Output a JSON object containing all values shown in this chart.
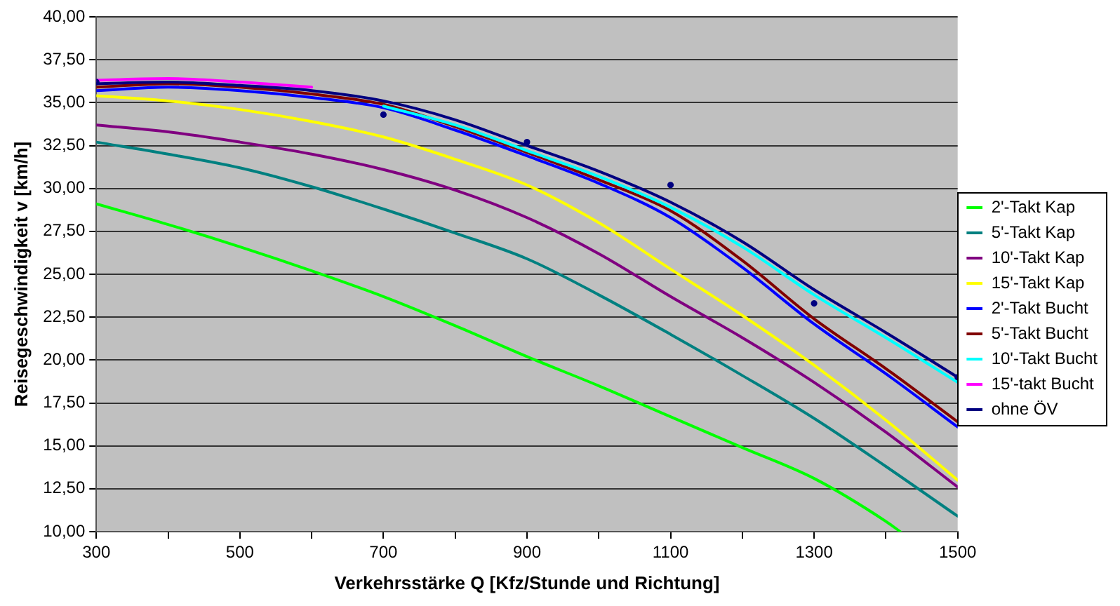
{
  "chart_data": {
    "type": "line",
    "xlabel": "Verkehrsstärke Q [Kfz/Stunde und Richtung]",
    "ylabel": "Reisegeschwindigkeit v [km/h]",
    "xlim": [
      300,
      1500
    ],
    "xticks": [
      300,
      {
        "value": 400,
        "label": null
      },
      500,
      {
        "value": 600,
        "label": null
      },
      700,
      {
        "value": 800,
        "label": null
      },
      900,
      {
        "value": 1000,
        "label": null
      },
      1100,
      {
        "value": 1200,
        "label": null
      },
      1300,
      {
        "value": 1400,
        "label": null
      },
      1500
    ],
    "ylim": [
      10,
      40
    ],
    "yticks": [
      {
        "value": 10,
        "label": "10,00"
      },
      {
        "value": 12.5,
        "label": "12,50"
      },
      {
        "value": 15,
        "label": "15,00"
      },
      {
        "value": 17.5,
        "label": "17,50"
      },
      {
        "value": 20,
        "label": "20,00"
      },
      {
        "value": 22.5,
        "label": "22,50"
      },
      {
        "value": 25,
        "label": "25,00"
      },
      {
        "value": 27.5,
        "label": "27,50"
      },
      {
        "value": 30,
        "label": "30,00"
      },
      {
        "value": 32.5,
        "label": "32,50"
      },
      {
        "value": 35,
        "label": "35,00"
      },
      {
        "value": 37.5,
        "label": "37,50"
      },
      {
        "value": 40,
        "label": "40,00"
      }
    ],
    "grid": "y",
    "legend": "right",
    "marker": "none",
    "line_style": "solid",
    "series": [
      {
        "name": "2'-Takt Kap",
        "color": "#00ff00",
        "x": [
          300,
          400,
          500,
          600,
          700,
          800,
          900,
          1000,
          1100,
          1200,
          1300,
          1400,
          1420
        ],
        "values": [
          29.1,
          27.9,
          26.6,
          25.2,
          23.7,
          22.0,
          20.2,
          18.5,
          16.7,
          14.9,
          13.1,
          10.6,
          10.0
        ]
      },
      {
        "name": "5'-Takt Kap",
        "color": "#008080",
        "x": [
          300,
          400,
          500,
          600,
          700,
          800,
          900,
          1000,
          1100,
          1200,
          1300,
          1400,
          1500
        ],
        "values": [
          32.7,
          32.0,
          31.2,
          30.1,
          28.8,
          27.4,
          25.9,
          23.8,
          21.5,
          19.1,
          16.6,
          13.8,
          10.9
        ]
      },
      {
        "name": "10'-Takt Kap",
        "color": "#800080",
        "x": [
          300,
          400,
          500,
          600,
          700,
          800,
          900,
          1000,
          1100,
          1200,
          1300,
          1400,
          1500
        ],
        "values": [
          33.7,
          33.3,
          32.7,
          32.0,
          31.1,
          29.9,
          28.3,
          26.2,
          23.7,
          21.3,
          18.7,
          15.8,
          12.6
        ]
      },
      {
        "name": "15'-Takt Kap",
        "color": "#ffff00",
        "x": [
          300,
          400,
          500,
          600,
          700,
          800,
          900,
          1000,
          1100,
          1200,
          1300,
          1400,
          1500
        ],
        "values": [
          35.4,
          35.1,
          34.6,
          33.9,
          33.0,
          31.7,
          30.2,
          28.0,
          25.3,
          22.6,
          19.7,
          16.5,
          13.0
        ]
      },
      {
        "name": "2'-Takt Bucht",
        "color": "#0000ff",
        "x": [
          300,
          400,
          500,
          600,
          700,
          800,
          900,
          1000,
          1100,
          1200,
          1300,
          1400,
          1500
        ],
        "values": [
          35.7,
          35.9,
          35.7,
          35.3,
          34.7,
          33.4,
          31.9,
          30.3,
          28.3,
          25.4,
          22.1,
          19.2,
          16.1
        ]
      },
      {
        "name": "5'-Takt Bucht",
        "color": "#800000",
        "x": [
          300,
          400,
          500,
          600,
          700,
          800,
          900,
          1000,
          1100,
          1200,
          1300,
          1400,
          1500
        ],
        "values": [
          35.9,
          36.1,
          35.9,
          35.5,
          34.9,
          33.6,
          32.1,
          30.5,
          28.7,
          25.8,
          22.4,
          19.5,
          16.4
        ]
      },
      {
        "name": "10'-Takt Bucht",
        "color": "#00ffff",
        "x": [
          700,
          800,
          900,
          1000,
          1100,
          1200,
          1300,
          1400,
          1500
        ],
        "values": [
          34.8,
          33.7,
          32.2,
          30.7,
          28.9,
          26.6,
          23.8,
          21.3,
          18.7
        ]
      },
      {
        "name": "15'-takt Bucht",
        "color": "#ff00ff",
        "x": [
          300,
          400,
          500,
          600
        ],
        "values": [
          36.3,
          36.4,
          36.2,
          35.9
        ]
      },
      {
        "name": "ohne ÖV",
        "color": "#000080",
        "x": [
          300,
          400,
          500,
          600,
          700,
          800,
          900,
          1000,
          1100,
          1200,
          1300,
          1400,
          1500
        ],
        "values": [
          36.1,
          36.2,
          36.0,
          35.7,
          35.1,
          34.0,
          32.5,
          31.0,
          29.2,
          26.9,
          24.1,
          21.6,
          19.0
        ]
      },
      {
        "type": "scatter",
        "marker": "circle",
        "color": "#000080",
        "x": [
          300,
          700,
          900,
          1100,
          1300,
          1500
        ],
        "values": [
          36.2,
          34.3,
          32.7,
          30.2,
          23.3,
          19.0
        ]
      }
    ]
  }
}
